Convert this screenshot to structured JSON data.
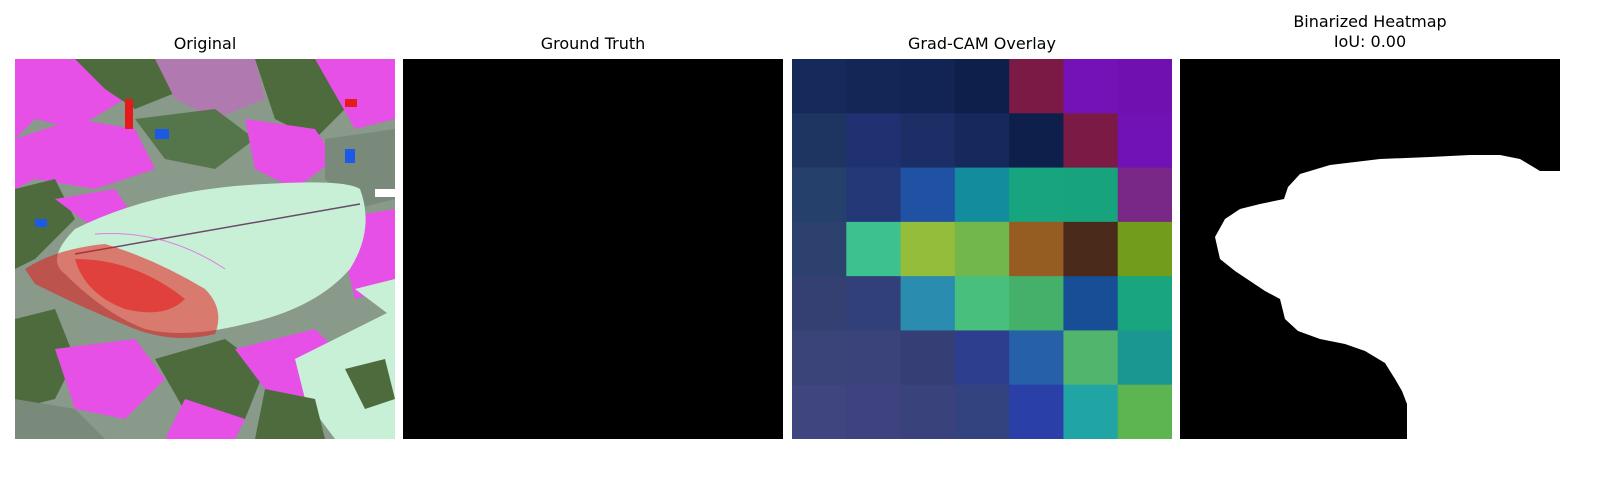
{
  "panels": [
    {
      "title": "Original"
    },
    {
      "title": "Ground Truth"
    },
    {
      "title": "Grad-CAM Overlay"
    },
    {
      "title": "Binarized Heatmap",
      "subtitle": "IoU: 0.00"
    }
  ],
  "gradcam": {
    "grid_size": 7,
    "cell_colors": [
      [
        "#15295a",
        "#132656",
        "#122453",
        "#0f1f4c",
        "#7a1a45",
        "#7412b8",
        "#7010b0"
      ],
      [
        "#1e3562",
        "#1f3170",
        "#1c2e66",
        "#16295c",
        "#0f1f4c",
        "#7a1a45",
        "#7012b5"
      ],
      [
        "#26406c",
        "#243878",
        "#1f52a2",
        "#138c9e",
        "#16a57e",
        "#17a37c",
        "#7a2888"
      ],
      [
        "#2d416f",
        "#3dc28f",
        "#93bd3a",
        "#72b74c",
        "#955d22",
        "#4a2a1a",
        "#729c1c"
      ],
      [
        "#343f72",
        "#32407a",
        "#2a8caf",
        "#49bf7e",
        "#45b06a",
        "#174e96",
        "#19a57e"
      ],
      [
        "#3a4479",
        "#3a447b",
        "#353f76",
        "#2e3e8e",
        "#2560a8",
        "#52b56e",
        "#1b9792"
      ],
      [
        "#3e457f",
        "#3e437f",
        "#39427b",
        "#32437f",
        "#2a3fa8",
        "#21a4a4",
        "#5cb550"
      ]
    ]
  },
  "colors": {
    "ground_truth_bg": "#000000",
    "heatmap_bg": "#000000",
    "heatmap_fg": "#ffffff"
  }
}
